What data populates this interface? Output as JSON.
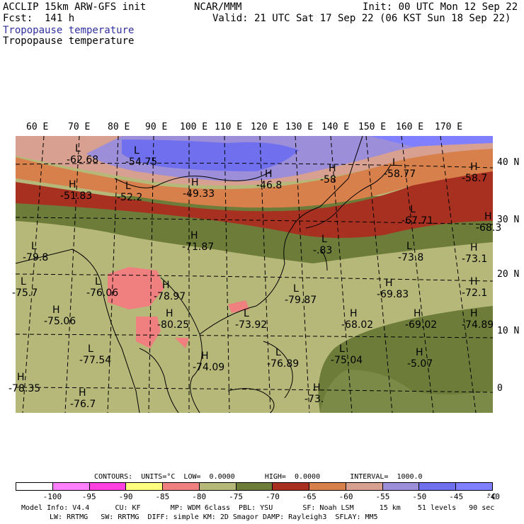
{
  "header": {
    "model": "ACCLIP 15km ARW-GFS init",
    "center": "NCAR/MMM",
    "init": "Init: 00 UTC Mon 12 Sep 22",
    "fcst": "Fcst:  141 h",
    "valid": "Valid: 21 UTC Sat 17 Sep 22 (06 KST Sun 18 Sep 22)",
    "field1": "Tropopause temperature",
    "field2": "Tropopause temperature"
  },
  "lon_labels": [
    "60 E",
    "70 E",
    "80 E",
    "90 E",
    "100 E",
    "110 E",
    "120 E",
    "130 E",
    "140 E",
    "150 E",
    "160 E",
    "170 E"
  ],
  "lat_labels": [
    "40 N",
    "30 N",
    "20 N",
    "10 N",
    "0"
  ],
  "map_labels": [
    {
      "letter": "L",
      "value": "-62.68"
    },
    {
      "letter": "L",
      "value": "-54.75"
    },
    {
      "letter": "H",
      "value": "-51.83"
    },
    {
      "letter": "L",
      "value": "-52.2"
    },
    {
      "letter": "H",
      "value": "-49.33"
    },
    {
      "letter": "H",
      "value": "-46.8"
    },
    {
      "letter": "H",
      "value": "-58"
    },
    {
      "letter": "L",
      "value": "-58.77"
    },
    {
      "letter": "H",
      "value": "-58.7"
    },
    {
      "letter": "L",
      "value": "-67.71"
    },
    {
      "letter": "H",
      "value": "-68.3"
    },
    {
      "letter": "L",
      "value": "-79.8"
    },
    {
      "letter": "H",
      "value": "-71.87"
    },
    {
      "letter": "L",
      "value": "-.83"
    },
    {
      "letter": "L",
      "value": "-73.8"
    },
    {
      "letter": "H",
      "value": "-73.1"
    },
    {
      "letter": "L",
      "value": "-75.7"
    },
    {
      "letter": "L",
      "value": "-76.06"
    },
    {
      "letter": "H",
      "value": "-78.97"
    },
    {
      "letter": "L",
      "value": "-79.87"
    },
    {
      "letter": "H",
      "value": "-69.83"
    },
    {
      "letter": "H",
      "value": "-72.1"
    },
    {
      "letter": "H",
      "value": "-75.06"
    },
    {
      "letter": "H",
      "value": "-80.25"
    },
    {
      "letter": "L",
      "value": "-73.92"
    },
    {
      "letter": "H",
      "value": "-68.02"
    },
    {
      "letter": "H",
      "value": "-69.02"
    },
    {
      "letter": "H",
      "value": "-74.89"
    },
    {
      "letter": "L",
      "value": "-77.54"
    },
    {
      "letter": "H",
      "value": "-74.09"
    },
    {
      "letter": "L",
      "value": "-76.89"
    },
    {
      "letter": "L",
      "value": "-75.04"
    },
    {
      "letter": "H",
      "value": "-5.07"
    },
    {
      "letter": "H",
      "value": "-78.35"
    },
    {
      "letter": "H",
      "value": "-76.7"
    },
    {
      "letter": "H",
      "value": "-73."
    }
  ],
  "colors": {
    "lt_m100": "#ffffff",
    "m100_m95": "#ff80ff",
    "m95_m90": "#ff40e0",
    "m90_m85": "#ffff80",
    "m85_m80": "#f08080",
    "m80_m75": "#b5b878",
    "m75_m70": "#6e7c3a",
    "m70_m65": "#a83020",
    "m65_m60": "#d8804c",
    "m60_m55": "#d8a090",
    "m55_m50": "#9c8ed8",
    "m50_m45": "#7070ee",
    "gt_m40": "#8080ff"
  },
  "colorbar": {
    "colors": [
      "#ffffff",
      "#ff80ff",
      "#ff40e0",
      "#ffff80",
      "#f08080",
      "#b5b878",
      "#6e7c3a",
      "#a83020",
      "#d8804c",
      "#d8a090",
      "#9c8ed8",
      "#7070ee",
      "#8080ff"
    ],
    "ticks": [
      "-100",
      "-95",
      "-90",
      "-85",
      "-80",
      "-75",
      "-70",
      "-65",
      "-60",
      "-55",
      "-50",
      "-45",
      "-40"
    ],
    "unit": "°C"
  },
  "contours_line": "CONTOURS:  UNITS=°C  LOW=  0.0000       HIGH=  0.0000       INTERVAL=  1000.0",
  "model_info_1": "Model Info: V4.4      CU: KF       MP: WDM 6class  PBL: YSU       SF: Noah LSM      15 km    51 levels   90 sec",
  "model_info_2": "LW: RRTMG   SW: RRTMG  DIFF: simple KM: 2D Smagor DAMP: Rayleigh3  SFLAY: MM5"
}
